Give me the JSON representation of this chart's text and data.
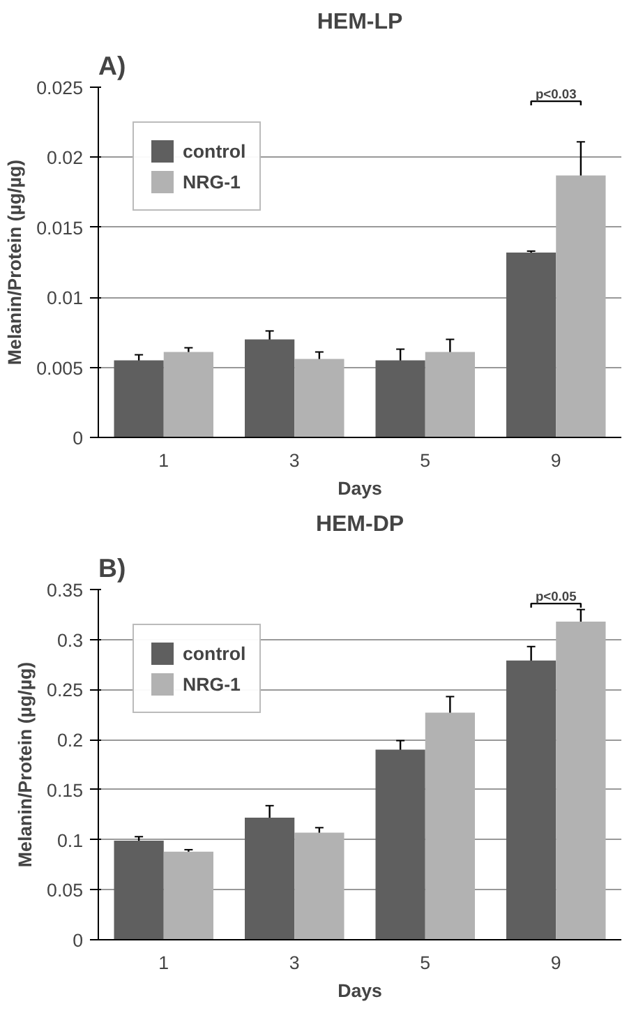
{
  "chart_data": [
    {
      "type": "bar",
      "title": "HEM-LP",
      "xlabel": "Days",
      "ylabel": "Melanin/Protein (µg/µg)",
      "categories": [
        "1",
        "3",
        "5",
        "9"
      ],
      "series": [
        {
          "name": "control",
          "color": "#5f5f5f",
          "values": [
            0.0055,
            0.007,
            0.0055,
            0.0132
          ],
          "errors": [
            0.0004,
            0.0006,
            0.0008,
            0.0001
          ]
        },
        {
          "name": "NRG-1",
          "color": "#b2b2b2",
          "values": [
            0.0061,
            0.0056,
            0.0061,
            0.0187
          ],
          "errors": [
            0.0003,
            0.0005,
            0.0009,
            0.0024
          ]
        }
      ],
      "ylim": [
        0,
        0.025
      ],
      "yticks": [
        0,
        0.005,
        0.01,
        0.015,
        0.02,
        0.025
      ],
      "grid": "y",
      "legend": "top left",
      "annotations": [
        "A)",
        "p<0.03"
      ]
    },
    {
      "type": "bar",
      "title": "HEM-DP",
      "xlabel": "Days",
      "ylabel": "Melanin/Protein (µg/µg)",
      "categories": [
        "1",
        "3",
        "5",
        "9"
      ],
      "series": [
        {
          "name": "control",
          "color": "#5f5f5f",
          "values": [
            0.099,
            0.122,
            0.19,
            0.279
          ],
          "errors": [
            0.004,
            0.012,
            0.009,
            0.014
          ]
        },
        {
          "name": "NRG-1",
          "color": "#b2b2b2",
          "values": [
            0.088,
            0.107,
            0.227,
            0.318
          ],
          "errors": [
            0.002,
            0.005,
            0.016,
            0.012
          ]
        }
      ],
      "ylim": [
        0,
        0.35
      ],
      "yticks": [
        0,
        0.05,
        0.1,
        0.15,
        0.2,
        0.25,
        0.3,
        0.35
      ],
      "grid": "y",
      "legend": "top left",
      "annotations": [
        "B)",
        "p<0.05"
      ]
    }
  ]
}
